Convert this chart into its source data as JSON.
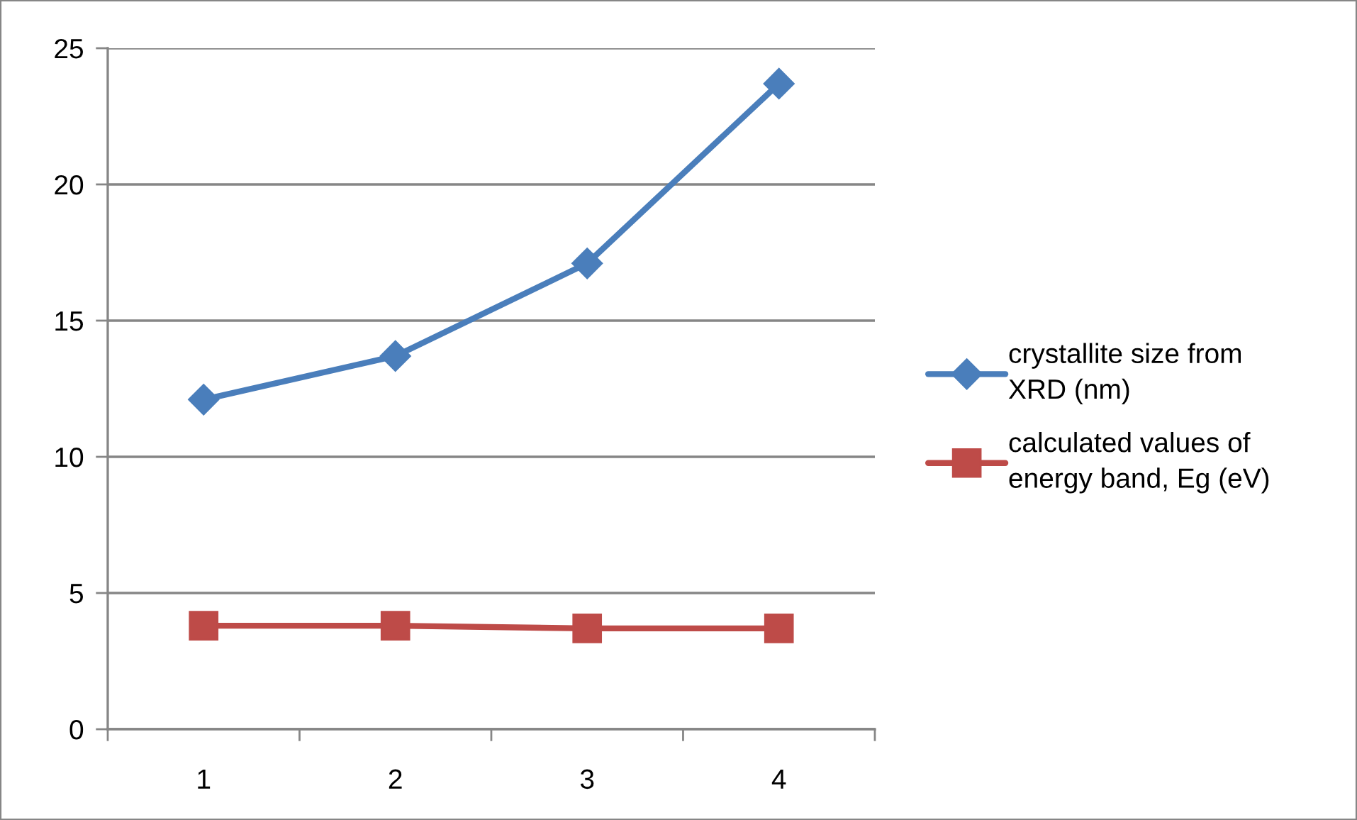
{
  "chart_data": {
    "type": "line",
    "categories": [
      "1",
      "2",
      "3",
      "4"
    ],
    "series": [
      {
        "name": "crystallite size from XRD (nm)",
        "color": "#4a7ebb",
        "marker": "diamond",
        "values": [
          12.1,
          13.7,
          17.1,
          23.7
        ]
      },
      {
        "name": "calculated values of energy band, Eg (eV)",
        "color": "#be4b48",
        "marker": "square",
        "values": [
          3.8,
          3.8,
          3.7,
          3.7
        ]
      }
    ],
    "ylim": [
      0,
      25
    ],
    "yticks": [
      0,
      5,
      10,
      15,
      20,
      25
    ],
    "grid": "y",
    "legend": "right",
    "line_style": "solid"
  }
}
